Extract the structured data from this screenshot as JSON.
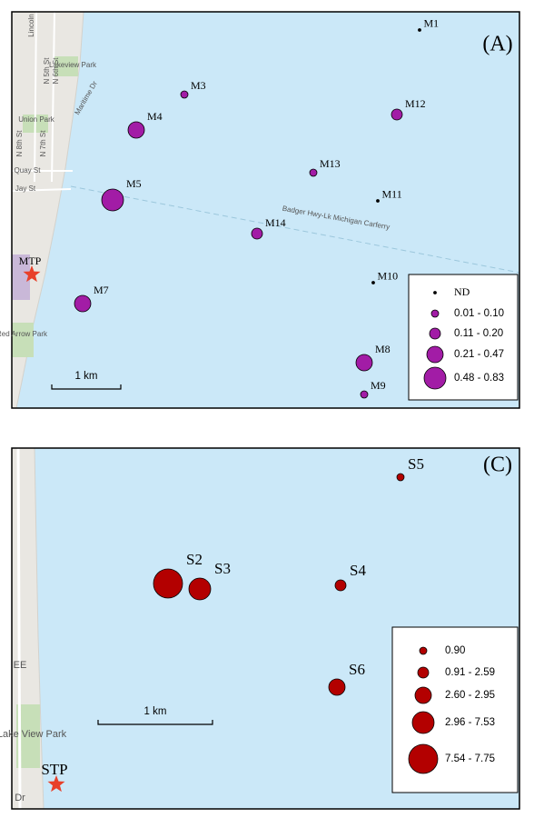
{
  "panels": [
    {
      "panel_label": "(A)",
      "site": "MTP",
      "scale": "1 km",
      "map_labels": [
        "Lincoln",
        "Lakeview Park",
        "N 5th St",
        "N 6th St",
        "Union Park",
        "N 7th St",
        "N 8th St",
        "Maritime Dr",
        "Quay St",
        "Jay St",
        "Red Arrow Park",
        "Badger Hwy-Lk Michigan Carferry"
      ],
      "legend": [
        {
          "label": "ND",
          "stations": [
            "M1",
            "M11",
            "M10"
          ]
        },
        {
          "label": "0.01 - 0.10",
          "stations": [
            "M3",
            "M13",
            "M9"
          ]
        },
        {
          "label": "0.11 - 0.20",
          "stations": [
            "M12",
            "M14"
          ]
        },
        {
          "label": "0.21 - 0.47",
          "stations": [
            "M4",
            "M7",
            "M8"
          ]
        },
        {
          "label": "0.48 - 0.83",
          "stations": [
            "M5"
          ]
        }
      ]
    },
    {
      "panel_label": "(C)",
      "site": "STP",
      "scale": "1 km",
      "map_labels": [
        "EE",
        "Lake View Park",
        "Dr"
      ],
      "legend": [
        {
          "label": "0.90",
          "stations": [
            "S5"
          ]
        },
        {
          "label": "0.91 - 2.59",
          "stations": [
            "S4"
          ]
        },
        {
          "label": "2.60 - 2.95",
          "stations": [
            "S6"
          ]
        },
        {
          "label": "2.96 - 7.53",
          "stations": [
            "S3"
          ]
        },
        {
          "label": "7.54 - 7.75",
          "stations": [
            "S2"
          ]
        }
      ]
    }
  ]
}
